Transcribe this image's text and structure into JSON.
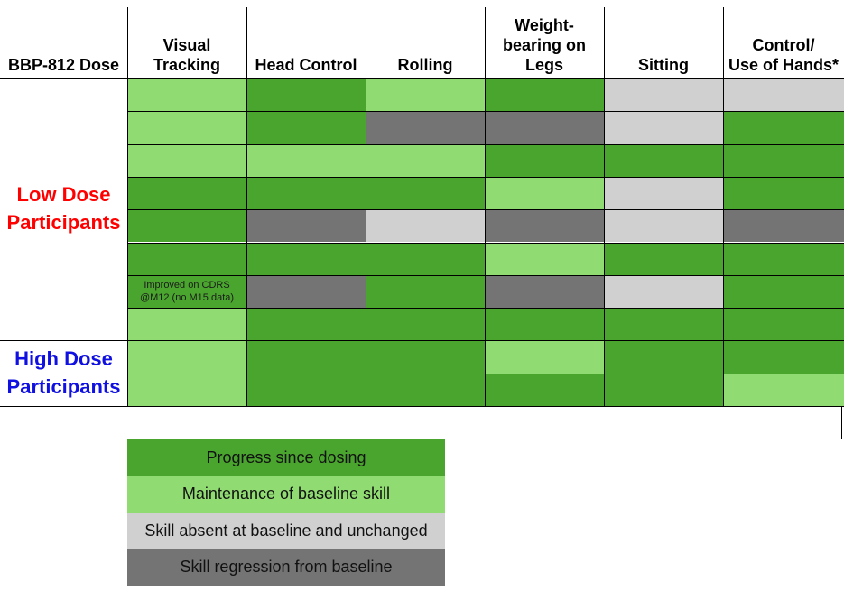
{
  "colors": {
    "progress": "#4aa52e",
    "maintenance": "#90dc72",
    "absent": "#d0d0d0",
    "regression": "#747474",
    "low_dose": "#ff0000",
    "high_dose": "#1010e0"
  },
  "chart_data": {
    "type": "table",
    "columns": [
      "BBP-812 Dose",
      "Visual\nTracking",
      "Head Control",
      "Rolling",
      "Weight-\nbearing on\nLegs",
      "Sitting",
      "Control/\nUse of Hands*"
    ],
    "groups": [
      {
        "label": "Low Dose\nParticipants",
        "color": "#ff0000",
        "rows": [
          0,
          1,
          2,
          3,
          4,
          5,
          6,
          7
        ]
      },
      {
        "label": "High Dose\nParticipants",
        "color": "#1010e0",
        "rows": [
          8,
          9
        ]
      }
    ],
    "rows": [
      [
        "maintenance",
        "progress",
        "maintenance",
        "progress",
        "absent",
        "absent"
      ],
      [
        "maintenance",
        "progress",
        "regression",
        "regression",
        "absent",
        "progress"
      ],
      [
        "maintenance",
        "maintenance",
        "maintenance",
        "progress",
        "progress",
        "progress"
      ],
      [
        "progress",
        "progress",
        "progress",
        "maintenance",
        "absent",
        "progress"
      ],
      [
        "progress",
        "regression",
        "absent",
        "regression",
        "absent",
        "regression"
      ],
      [
        "progress",
        "progress",
        "progress",
        "maintenance",
        "progress",
        "progress"
      ],
      [
        "note",
        "regression",
        "progress",
        "regression",
        "absent",
        "progress"
      ],
      [
        "maintenance",
        "progress",
        "progress",
        "progress",
        "progress",
        "progress"
      ],
      [
        "maintenance",
        "progress",
        "progress",
        "maintenance",
        "progress",
        "progress"
      ],
      [
        "maintenance",
        "progress",
        "progress",
        "progress",
        "progress",
        "maintenance"
      ]
    ],
    "note_text": [
      "Improved on CDRS",
      "@M12 (no M15 data)"
    ],
    "legend": [
      {
        "key": "progress",
        "label": "Progress since dosing"
      },
      {
        "key": "maintenance",
        "label": "Maintenance of baseline skill"
      },
      {
        "key": "absent",
        "label": "Skill absent at baseline and unchanged"
      },
      {
        "key": "regression",
        "label": "Skill regression from baseline"
      }
    ]
  }
}
